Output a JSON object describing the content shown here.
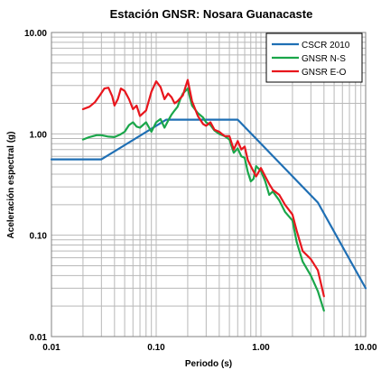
{
  "chart_data": {
    "type": "line",
    "title": "Estación GNSR: Nosara Guanacaste",
    "xlabel": "Periodo (s)",
    "ylabel": "Aceleración espectral (g)",
    "x_scale": "log",
    "y_scale": "log",
    "xlim": [
      0.01,
      10
    ],
    "ylim": [
      0.01,
      10
    ],
    "grid": true,
    "legend_position": "top-right",
    "x_ticks": [
      "0.01",
      "0.10",
      "1.00",
      "10.00"
    ],
    "y_ticks": [
      "0.01",
      "0.10",
      "1.00",
      "10.00"
    ],
    "series": [
      {
        "name": "CSCR 2010",
        "color": "#1f6fb4",
        "x": [
          0.01,
          0.03,
          0.125,
          0.6,
          3.5,
          10
        ],
        "y": [
          0.56,
          0.56,
          1.38,
          1.38,
          0.21,
          0.03
        ]
      },
      {
        "name": "GNSR N-S",
        "color": "#1aa64a",
        "x": [
          0.02,
          0.023,
          0.027,
          0.03,
          0.035,
          0.04,
          0.045,
          0.05,
          0.055,
          0.06,
          0.065,
          0.07,
          0.08,
          0.09,
          0.1,
          0.11,
          0.12,
          0.13,
          0.14,
          0.15,
          0.16,
          0.17,
          0.18,
          0.2,
          0.22,
          0.25,
          0.28,
          0.3,
          0.33,
          0.36,
          0.4,
          0.45,
          0.5,
          0.55,
          0.6,
          0.65,
          0.7,
          0.75,
          0.8,
          0.85,
          0.9,
          1.0,
          1.1,
          1.2,
          1.3,
          1.5,
          1.7,
          2.0,
          2.2,
          2.5,
          3.0,
          3.5,
          4.0
        ],
        "y": [
          0.88,
          0.93,
          0.97,
          0.97,
          0.94,
          0.93,
          0.98,
          1.05,
          1.22,
          1.3,
          1.18,
          1.15,
          1.3,
          1.05,
          1.3,
          1.4,
          1.15,
          1.35,
          1.55,
          1.7,
          1.85,
          2.2,
          2.5,
          2.8,
          1.9,
          1.6,
          1.45,
          1.3,
          1.22,
          1.08,
          1.0,
          0.95,
          0.88,
          0.65,
          0.72,
          0.6,
          0.58,
          0.42,
          0.34,
          0.36,
          0.48,
          0.43,
          0.34,
          0.25,
          0.27,
          0.22,
          0.17,
          0.14,
          0.085,
          0.055,
          0.04,
          0.028,
          0.018
        ]
      },
      {
        "name": "GNSR E-O",
        "color": "#e8161d",
        "x": [
          0.02,
          0.023,
          0.026,
          0.029,
          0.032,
          0.035,
          0.038,
          0.04,
          0.043,
          0.046,
          0.05,
          0.055,
          0.06,
          0.065,
          0.07,
          0.08,
          0.09,
          0.1,
          0.11,
          0.12,
          0.13,
          0.14,
          0.15,
          0.16,
          0.18,
          0.2,
          0.22,
          0.25,
          0.28,
          0.3,
          0.33,
          0.36,
          0.4,
          0.45,
          0.5,
          0.55,
          0.6,
          0.65,
          0.7,
          0.75,
          0.8,
          0.9,
          1.0,
          1.1,
          1.2,
          1.3,
          1.5,
          1.7,
          2.0,
          2.2,
          2.5,
          3.0,
          3.5,
          4.0
        ],
        "y": [
          1.75,
          1.85,
          2.05,
          2.4,
          2.8,
          2.85,
          2.35,
          1.9,
          2.2,
          2.8,
          2.65,
          2.2,
          1.75,
          1.9,
          1.5,
          1.7,
          2.6,
          3.3,
          2.9,
          2.2,
          2.5,
          2.3,
          2.0,
          2.1,
          2.4,
          3.4,
          2.1,
          1.5,
          1.25,
          1.2,
          1.3,
          1.1,
          1.05,
          0.95,
          0.95,
          0.7,
          0.85,
          0.7,
          0.75,
          0.55,
          0.48,
          0.38,
          0.46,
          0.38,
          0.32,
          0.28,
          0.25,
          0.2,
          0.16,
          0.11,
          0.07,
          0.058,
          0.045,
          0.025
        ]
      }
    ]
  }
}
